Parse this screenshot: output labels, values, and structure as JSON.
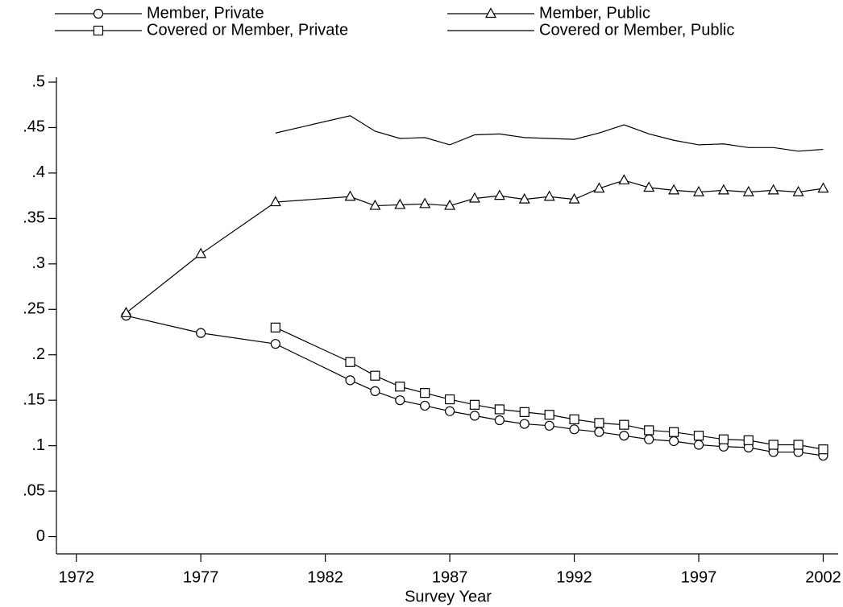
{
  "chart_data": {
    "type": "line",
    "xlabel": "Survey Year",
    "xlim": [
      1971.2,
      2002.6
    ],
    "xticks": [
      1972,
      1977,
      1982,
      1987,
      1992,
      1997,
      2002
    ],
    "ylim": [
      -0.019,
      0.5
    ],
    "yticks": [
      0,
      {
        "value": 0.05,
        "label": ".05"
      },
      {
        "value": 0.1,
        "label": ".1"
      },
      {
        "value": 0.15,
        "label": ".15"
      },
      {
        "value": 0.2,
        "label": ".2"
      },
      {
        "value": 0.25,
        "label": ".25"
      },
      {
        "value": 0.3,
        "label": ".3"
      },
      {
        "value": 0.35,
        "label": ".35"
      },
      {
        "value": 0.4,
        "label": ".4"
      },
      {
        "value": 0.45,
        "label": ".45"
      },
      {
        "value": 0.5,
        "label": ".5"
      }
    ],
    "grid": false,
    "legend": "top",
    "series": [
      {
        "name": "Member, Private",
        "color": "#000000",
        "marker": "circle",
        "x": [
          1974,
          1977,
          1980,
          1983,
          1984,
          1985,
          1986,
          1987,
          1988,
          1989,
          1990,
          1991,
          1992,
          1993,
          1994,
          1995,
          1996,
          1997,
          1998,
          1999,
          2000,
          2001,
          2002
        ],
        "values": [
          0.243,
          0.224,
          0.212,
          0.172,
          0.16,
          0.15,
          0.144,
          0.138,
          0.133,
          0.128,
          0.124,
          0.122,
          0.118,
          0.115,
          0.111,
          0.107,
          0.105,
          0.101,
          0.099,
          0.098,
          0.093,
          0.093,
          0.089
        ]
      },
      {
        "name": "Member, Public",
        "color": "#000000",
        "marker": "triangle",
        "x": [
          1974,
          1977,
          1980,
          1983,
          1984,
          1985,
          1986,
          1987,
          1988,
          1989,
          1990,
          1991,
          1992,
          1993,
          1994,
          1995,
          1996,
          1997,
          1998,
          1999,
          2000,
          2001,
          2002
        ],
        "values": [
          0.246,
          0.311,
          0.368,
          0.374,
          0.364,
          0.365,
          0.366,
          0.364,
          0.372,
          0.375,
          0.371,
          0.374,
          0.371,
          0.383,
          0.392,
          0.384,
          0.381,
          0.379,
          0.381,
          0.379,
          0.381,
          0.379,
          0.383
        ]
      },
      {
        "name": "Covered or Member, Private",
        "color": "#000000",
        "marker": "square",
        "x": [
          1980,
          1983,
          1984,
          1985,
          1986,
          1987,
          1988,
          1989,
          1990,
          1991,
          1992,
          1993,
          1994,
          1995,
          1996,
          1997,
          1998,
          1999,
          2000,
          2001,
          2002
        ],
        "values": [
          0.23,
          0.192,
          0.177,
          0.165,
          0.158,
          0.151,
          0.145,
          0.14,
          0.137,
          0.134,
          0.129,
          0.125,
          0.123,
          0.117,
          0.115,
          0.111,
          0.107,
          0.106,
          0.101,
          0.101,
          0.096
        ]
      },
      {
        "name": "Covered or Member, Public",
        "color": "#000000",
        "marker": "none",
        "x": [
          1980,
          1983,
          1984,
          1985,
          1986,
          1987,
          1988,
          1989,
          1990,
          1991,
          1992,
          1993,
          1994,
          1995,
          1996,
          1997,
          1998,
          1999,
          2000,
          2001,
          2002
        ],
        "values": [
          0.444,
          0.463,
          0.446,
          0.438,
          0.439,
          0.431,
          0.442,
          0.443,
          0.439,
          0.438,
          0.437,
          0.444,
          0.453,
          0.443,
          0.436,
          0.431,
          0.432,
          0.428,
          0.428,
          0.424,
          0.426
        ]
      }
    ]
  }
}
